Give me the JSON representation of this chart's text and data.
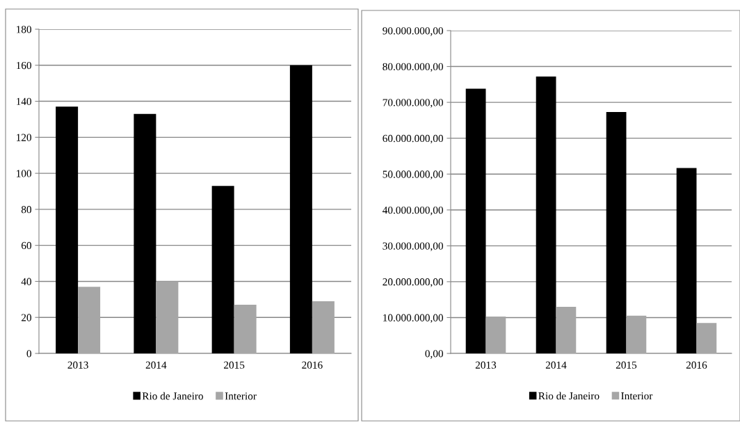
{
  "chart_data": [
    {
      "type": "bar",
      "categories": [
        "2013",
        "2014",
        "2015",
        "2016"
      ],
      "series": [
        {
          "name": "Rio de Janeiro",
          "color": "#000000",
          "values": [
            137,
            133,
            93,
            160
          ]
        },
        {
          "name": "Interior",
          "color": "#a6a6a6",
          "values": [
            37,
            40,
            27,
            29
          ]
        }
      ],
      "ylim": [
        0,
        180
      ],
      "yticks": [
        0,
        20,
        40,
        60,
        80,
        100,
        120,
        140,
        160,
        180
      ],
      "grid": "y",
      "legend": "bottom"
    },
    {
      "type": "bar",
      "categories": [
        "2013",
        "2014",
        "2015",
        "2016"
      ],
      "series": [
        {
          "name": "Rio de Janeiro",
          "color": "#000000",
          "values": [
            73800000,
            77200000,
            67300000,
            51700000
          ]
        },
        {
          "name": "Interior",
          "color": "#a6a6a6",
          "values": [
            10300000,
            13000000,
            10500000,
            8500000
          ]
        }
      ],
      "ylim": [
        0,
        90000000
      ],
      "yticks": [
        {
          "value": 0,
          "label": "0,00"
        },
        {
          "value": 10000000,
          "label": "10.000.000,00"
        },
        {
          "value": 20000000,
          "label": "20.000.000,00"
        },
        {
          "value": 30000000,
          "label": "30.000.000,00"
        },
        {
          "value": 40000000,
          "label": "40.000.000,00"
        },
        {
          "value": 50000000,
          "label": "50.000.000,00"
        },
        {
          "value": 60000000,
          "label": "60.000.000,00"
        },
        {
          "value": 70000000,
          "label": "70.000.000,00"
        },
        {
          "value": 80000000,
          "label": "80.000.000,00"
        },
        {
          "value": 90000000,
          "label": "90.000.000,00"
        }
      ],
      "grid": "y",
      "legend": "bottom"
    }
  ]
}
